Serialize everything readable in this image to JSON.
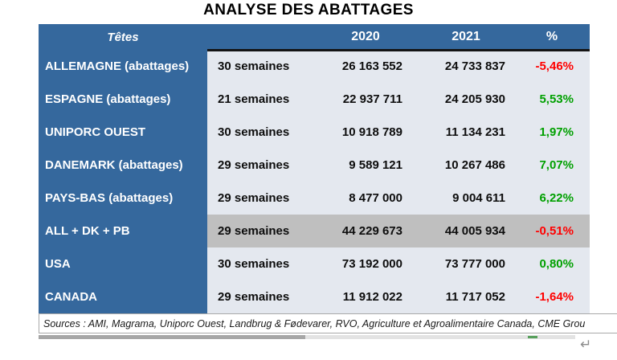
{
  "title": "ANALYSE DES ABATTAGES",
  "colors": {
    "header_blue": "#35689D",
    "cell_light": "#E4E8EF",
    "highlight_gray": "#BFBFBF",
    "negative_red": "#FF0000",
    "positive_green": "#00A000"
  },
  "chart_data": {
    "type": "table",
    "title": "ANALYSE DES ABATTAGES",
    "header": {
      "col_label": "Têtes",
      "col_2020": "2020",
      "col_2021": "2021",
      "col_pct": "%"
    },
    "rows": [
      {
        "label": "ALLEMAGNE (abattages)",
        "weeks": "30 semaines",
        "v2020": "26 163 552",
        "v2021": "24 733 837",
        "pct": "-5,46%",
        "trend": "down",
        "highlight": false
      },
      {
        "label": "ESPAGNE (abattages)",
        "weeks": "21 semaines",
        "v2020": "22 937 711",
        "v2021": "24 205 930",
        "pct": "5,53%",
        "trend": "up",
        "highlight": false
      },
      {
        "label": "UNIPORC OUEST",
        "weeks": "30 semaines",
        "v2020": "10 918 789",
        "v2021": "11 134 231",
        "pct": "1,97%",
        "trend": "up",
        "highlight": false
      },
      {
        "label": "DANEMARK (abattages)",
        "weeks": "29 semaines",
        "v2020": "9 589 121",
        "v2021": "10 267 486",
        "pct": "7,07%",
        "trend": "up",
        "highlight": false
      },
      {
        "label": "PAYS-BAS (abattages)",
        "weeks": "29 semaines",
        "v2020": "8 477 000",
        "v2021": "9 004 611",
        "pct": "6,22%",
        "trend": "up",
        "highlight": false
      },
      {
        "label": "ALL + DK + PB",
        "weeks": "29 semaines",
        "v2020": "44 229 673",
        "v2021": "44 005 934",
        "pct": "-0,51%",
        "trend": "down",
        "highlight": true
      },
      {
        "label": "USA",
        "weeks": "30 semaines",
        "v2020": "73 192 000",
        "v2021": "73 777 000",
        "pct": "0,80%",
        "trend": "up",
        "highlight": false
      },
      {
        "label": "CANADA",
        "weeks": "29 semaines",
        "v2020": "11 912 022",
        "v2021": "11 717 052",
        "pct": "-1,64%",
        "trend": "down",
        "highlight": false
      }
    ]
  },
  "footer": {
    "sources": "Sources : AMI, Magrama, Uniporc Ouest, Landbrug & Fødevarer, RVO, Agriculture et Agroalimentaire Canada, CME Grou"
  },
  "marks": {
    "return_mark": "↵"
  }
}
